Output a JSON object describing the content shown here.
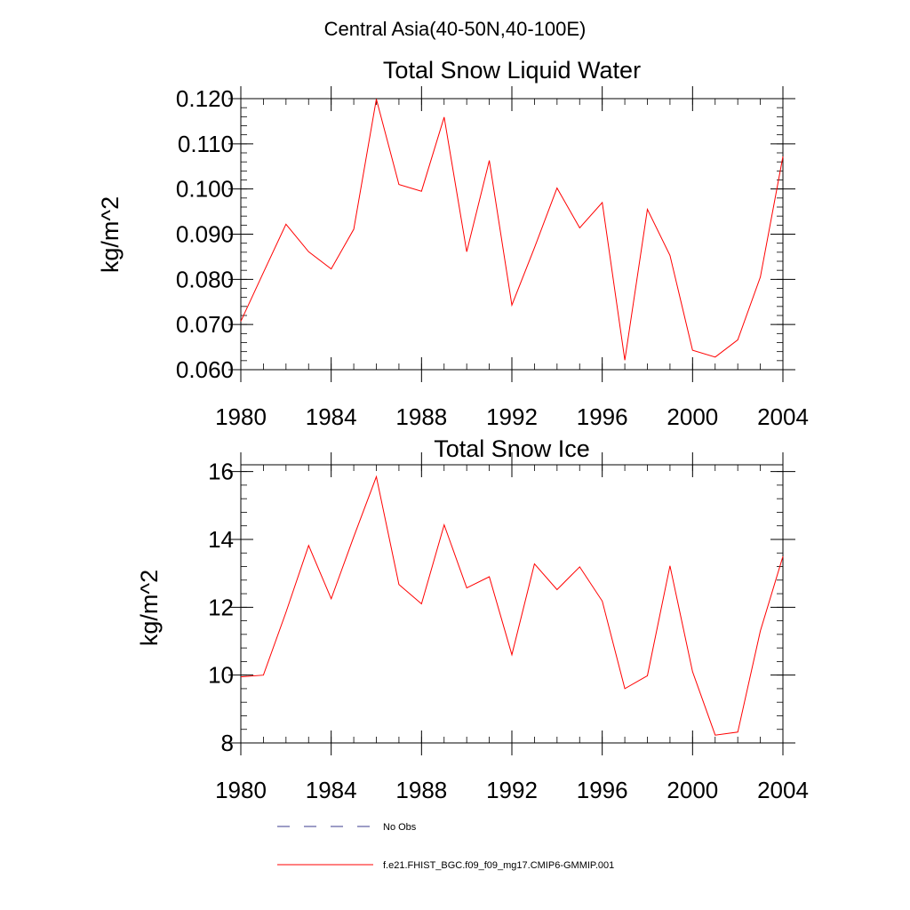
{
  "figure": {
    "suptitle": "Central Asia(40-50N,40-100E)"
  },
  "legend": {
    "entries": [
      {
        "label": "No Obs",
        "color": "#3b3b8c",
        "style": "dashed"
      },
      {
        "label": "f.e21.FHIST_BGC.f09_f09_mg17.CMIP6-GMMIP.001",
        "color": "#ff0000",
        "style": "solid"
      }
    ]
  },
  "chart_data": [
    {
      "type": "line",
      "title": "Total Snow Liquid Water",
      "xlabel": "",
      "ylabel": "kg/m^2",
      "xlim": [
        1980,
        2004
      ],
      "ylim": [
        0.06,
        0.12
      ],
      "xticks": [
        1980,
        1984,
        1988,
        1992,
        1996,
        2000,
        2004
      ],
      "xtick_labels": [
        "1980",
        "1984",
        "1988",
        "1992",
        "1996",
        "2000",
        "2004"
      ],
      "yticks": [
        0.06,
        0.07,
        0.08,
        0.09,
        0.1,
        0.11,
        0.12
      ],
      "ytick_labels": [
        "0.060",
        "0.070",
        "0.080",
        "0.090",
        "0.100",
        "0.110",
        "0.120"
      ],
      "x_minor_step": 1,
      "y_minor_step": 0.002,
      "grid": false,
      "series": [
        {
          "name": "f.e21.FHIST_BGC.f09_f09_mg17.CMIP6-GMMIP.001",
          "color": "#ff0000",
          "x": [
            1980,
            1981,
            1982,
            1983,
            1984,
            1985,
            1986,
            1987,
            1988,
            1989,
            1990,
            1991,
            1992,
            1993,
            1994,
            1995,
            1996,
            1997,
            1998,
            1999,
            2000,
            2001,
            2002,
            2003,
            2004
          ],
          "values": [
            0.0707,
            0.0815,
            0.0922,
            0.0861,
            0.0823,
            0.0911,
            0.1199,
            0.101,
            0.0995,
            0.1159,
            0.0861,
            0.1063,
            0.0743,
            0.087,
            0.1002,
            0.0914,
            0.097,
            0.0621,
            0.0955,
            0.0853,
            0.0643,
            0.0628,
            0.0666,
            0.0805,
            0.1072
          ]
        }
      ]
    },
    {
      "type": "line",
      "title": "Total Snow Ice",
      "xlabel": "",
      "ylabel": "kg/m^2",
      "xlim": [
        1980,
        2004
      ],
      "ylim": [
        8,
        16.2
      ],
      "xticks": [
        1980,
        1984,
        1988,
        1992,
        1996,
        2000,
        2004
      ],
      "xtick_labels": [
        "1980",
        "1984",
        "1988",
        "1992",
        "1996",
        "2000",
        "2004"
      ],
      "yticks": [
        8,
        10,
        12,
        14,
        16
      ],
      "ytick_labels": [
        "8",
        "10",
        "12",
        "14",
        "16"
      ],
      "x_minor_step": 1,
      "y_minor_step": 0.4,
      "grid": false,
      "series": [
        {
          "name": "f.e21.FHIST_BGC.f09_f09_mg17.CMIP6-GMMIP.001",
          "color": "#ff0000",
          "x": [
            1980,
            1981,
            1982,
            1983,
            1984,
            1985,
            1986,
            1987,
            1988,
            1989,
            1990,
            1991,
            1992,
            1993,
            1994,
            1995,
            1996,
            1997,
            1998,
            1999,
            2000,
            2001,
            2002,
            2003,
            2004
          ],
          "values": [
            9.95,
            10.0,
            11.85,
            13.82,
            12.25,
            14.08,
            15.85,
            12.67,
            12.1,
            14.43,
            12.57,
            12.9,
            10.6,
            13.28,
            12.52,
            13.19,
            12.18,
            9.6,
            9.98,
            13.22,
            10.1,
            8.23,
            8.32,
            11.3,
            13.5
          ]
        }
      ]
    }
  ]
}
